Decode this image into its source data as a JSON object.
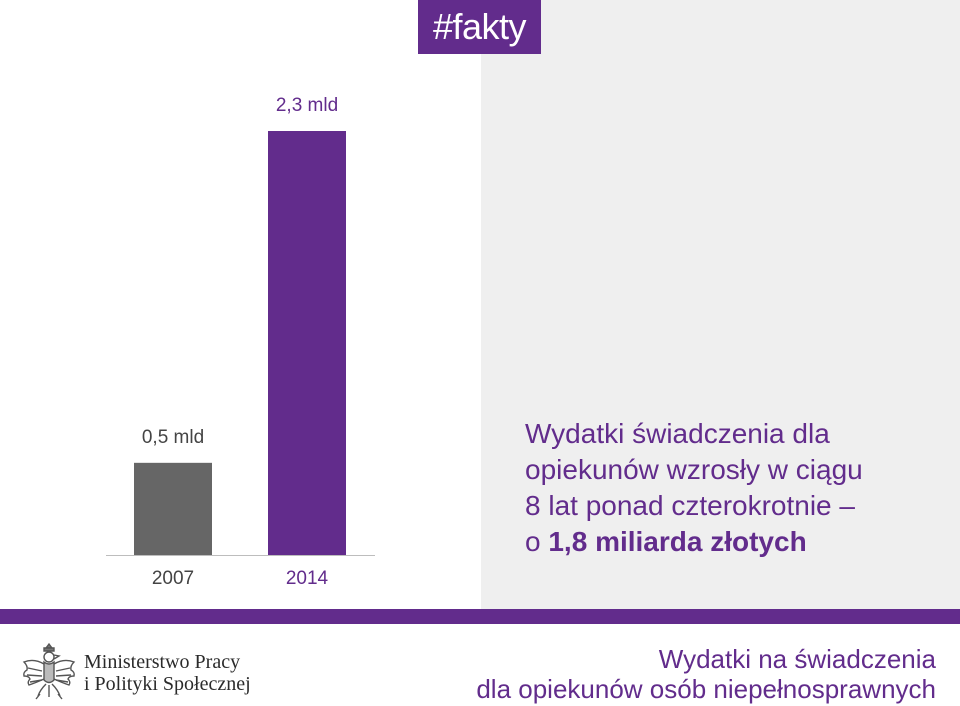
{
  "tag": "#fakty",
  "chart_data": {
    "type": "bar",
    "categories": [
      "2007",
      "2014"
    ],
    "values": [
      0.5,
      2.3
    ],
    "value_labels": [
      "0,5 mld",
      "2,3 mld"
    ],
    "colors": [
      "#666666",
      "#622c8c"
    ],
    "title": "",
    "xlabel": "",
    "ylabel": "",
    "ylim": [
      0,
      2.3
    ],
    "grid": false,
    "legend": "none"
  },
  "headline": {
    "line1": "Wydatki  świadczenia dla",
    "line2": "opiekunów wzrosły w ciągu",
    "line3": "8 lat ponad czterokrotnie –",
    "line4_prefix": "o ",
    "line4_strong": "1,8 miliarda złotych"
  },
  "footer": {
    "ministry_line1": "Ministerstwo Pracy",
    "ministry_line2": "i Polityki Społecznej",
    "title_line1": "Wydatki na świadczenia",
    "title_line2": "dla opiekunów osób niepełnosprawnych"
  },
  "colors": {
    "accent": "#622c8c",
    "panel": "#efefef",
    "bar_gray": "#666666"
  },
  "icons": {
    "logo": "white-eagle-emblem-icon"
  }
}
